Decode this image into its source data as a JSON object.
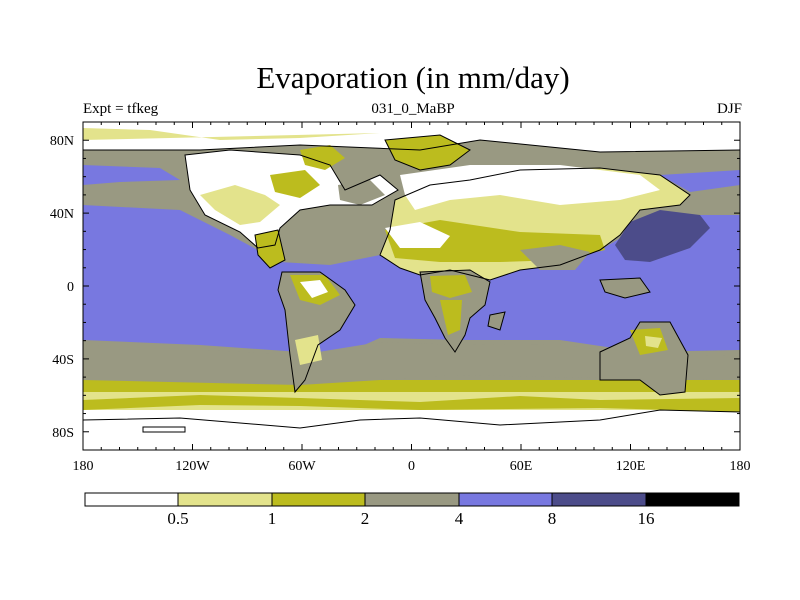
{
  "title": "Evaporation (in mm/day)",
  "subtitle_left": "Expt = tfkeg",
  "subtitle_center": "031_0_MaBP",
  "subtitle_right": "DJF",
  "map": {
    "projection": "cylindrical-equidistant",
    "lon_range": [
      -180,
      180
    ],
    "lat_range": [
      -90,
      90
    ],
    "x_ticks": [
      {
        "lon": -180,
        "label": "180"
      },
      {
        "lon": -120,
        "label": "120W"
      },
      {
        "lon": -60,
        "label": "60W"
      },
      {
        "lon": 0,
        "label": "0"
      },
      {
        "lon": 60,
        "label": "60E"
      },
      {
        "lon": 120,
        "label": "120E"
      },
      {
        "lon": 180,
        "label": "180"
      }
    ],
    "y_ticks": [
      {
        "lat": 80,
        "label": "80N"
      },
      {
        "lat": 40,
        "label": "40N"
      },
      {
        "lat": 0,
        "label": "0"
      },
      {
        "lat": -40,
        "label": "40S"
      },
      {
        "lat": -80,
        "label": "80S"
      }
    ]
  },
  "colorbar": {
    "levels": [
      "0.5",
      "1",
      "2",
      "4",
      "8",
      "16"
    ],
    "colors": [
      "#ffffff",
      "#e3e38c",
      "#bcbc1e",
      "#999982",
      "#7878e0",
      "#4c4c8a",
      "#000000"
    ]
  }
}
